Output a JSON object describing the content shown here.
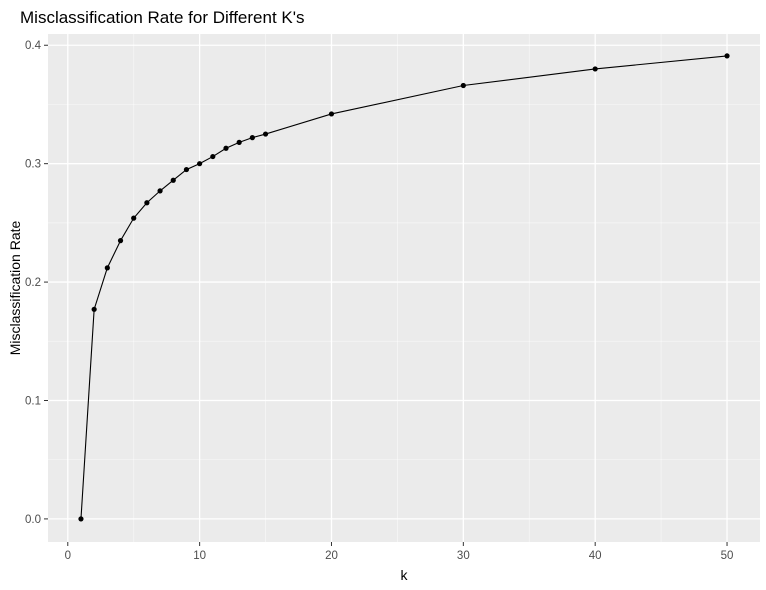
{
  "chart_data": {
    "type": "line",
    "title": "Misclassification Rate for Different K's",
    "xlabel": "k",
    "ylabel": "Misclassification Rate",
    "xlim": [
      -1.5,
      52.5
    ],
    "ylim": [
      -0.0195,
      0.4095
    ],
    "x_ticks": [
      0,
      10,
      20,
      30,
      40,
      50
    ],
    "x_tick_labels": [
      "0",
      "10",
      "20",
      "30",
      "40",
      "50"
    ],
    "x_minor_ticks": [
      5,
      15,
      25,
      35,
      45
    ],
    "y_ticks": [
      0.0,
      0.1,
      0.2,
      0.3,
      0.4
    ],
    "y_tick_labels": [
      "0.0",
      "0.1",
      "0.2",
      "0.3",
      "0.4"
    ],
    "y_minor_ticks": [
      0.05,
      0.15,
      0.25,
      0.35
    ],
    "grid": true,
    "series": [
      {
        "x": [
          1,
          2,
          3,
          4,
          5,
          6,
          7,
          8,
          9,
          10,
          11,
          12,
          13,
          14,
          15,
          20,
          30,
          40,
          50
        ],
        "y": [
          0.0,
          0.177,
          0.212,
          0.235,
          0.254,
          0.267,
          0.277,
          0.286,
          0.295,
          0.3,
          0.306,
          0.313,
          0.318,
          0.322,
          0.325,
          0.342,
          0.366,
          0.38,
          0.391
        ]
      }
    ],
    "colors": {
      "panel": "#ebebeb",
      "grid_major": "#ffffff",
      "line": "#000000",
      "point": "#000000",
      "tick": "#333333"
    }
  }
}
